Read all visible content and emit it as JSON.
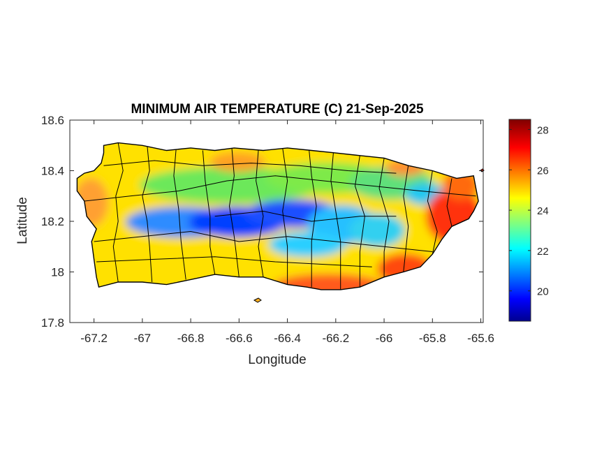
{
  "chart_data": {
    "type": "heatmap",
    "title": "MINIMUM AIR TEMPERATURE (C) 21-Sep-2025",
    "xlabel": "Longitude",
    "ylabel": "Latitude",
    "xlim": [
      -67.3,
      -65.59
    ],
    "ylim": [
      17.8,
      18.6
    ],
    "xticks": [
      "-67.2",
      "-67",
      "-66.8",
      "-66.6",
      "-66.4",
      "-66.2",
      "-66",
      "-65.8",
      "-65.6"
    ],
    "yticks": [
      "18.6",
      "18.4",
      "18.2",
      "18",
      "17.8"
    ],
    "colorbar": {
      "colormap": "jet",
      "range": [
        18.5,
        28.5
      ],
      "ticks": [
        "28",
        "26",
        "24",
        "22",
        "20"
      ]
    },
    "grid": false,
    "colors": {
      "coast": "#000000",
      "axis": "#262626"
    }
  }
}
